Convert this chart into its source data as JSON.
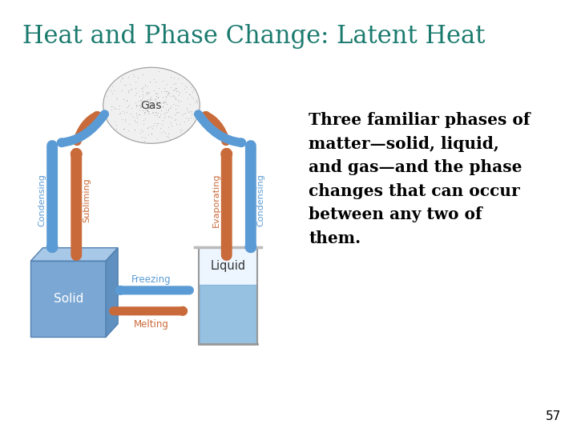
{
  "title": "Heat and Phase Change: Latent Heat",
  "title_color": "#1a7a6e",
  "title_fontsize": 22,
  "body_text": "Three familiar phases of\nmatter—solid, liquid,\nand gas—and the phase\nchanges that can occur\nbetween any two of\nthem.",
  "body_fontsize": 14.5,
  "page_number": "57",
  "bg_color": "#ffffff",
  "blue_arrow": "#5b9bd5",
  "red_arrow": "#c96a3a",
  "blue_arrow_light": "#aacce8",
  "red_arrow_light": "#e8c0a0"
}
